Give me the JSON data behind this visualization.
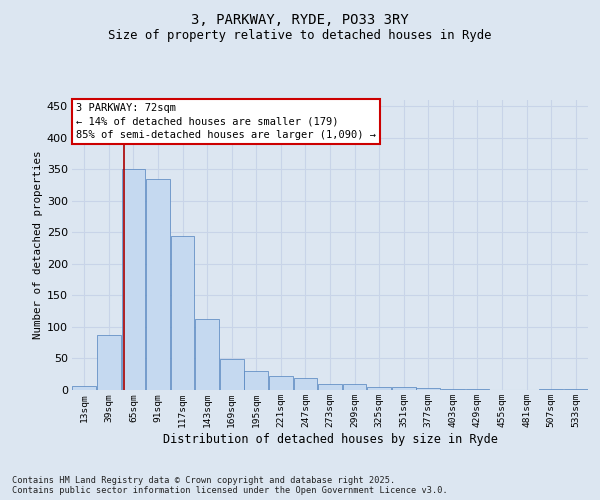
{
  "title1": "3, PARKWAY, RYDE, PO33 3RY",
  "title2": "Size of property relative to detached houses in Ryde",
  "xlabel": "Distribution of detached houses by size in Ryde",
  "ylabel": "Number of detached properties",
  "categories": [
    "13sqm",
    "39sqm",
    "65sqm",
    "91sqm",
    "117sqm",
    "143sqm",
    "169sqm",
    "195sqm",
    "221sqm",
    "247sqm",
    "273sqm",
    "299sqm",
    "325sqm",
    "351sqm",
    "377sqm",
    "403sqm",
    "429sqm",
    "455sqm",
    "481sqm",
    "507sqm",
    "533sqm"
  ],
  "values": [
    6,
    88,
    350,
    335,
    245,
    112,
    49,
    30,
    23,
    19,
    10,
    10,
    5,
    4,
    3,
    2,
    1,
    0,
    0,
    1,
    2
  ],
  "bar_color": "#c5d9f0",
  "bar_edge_color": "#4f81bd",
  "bg_color": "#dce6f1",
  "grid_color": "#c8d4e8",
  "annotation_text": "3 PARKWAY: 72sqm\n← 14% of detached houses are smaller (179)\n85% of semi-detached houses are larger (1,090) →",
  "annotation_box_color": "#ffffff",
  "annotation_box_edge_color": "#cc0000",
  "vline_color": "#aa0000",
  "vline_x": 1.6,
  "ylim_max": 460,
  "yticks": [
    0,
    50,
    100,
    150,
    200,
    250,
    300,
    350,
    400,
    450
  ],
  "footnote": "Contains HM Land Registry data © Crown copyright and database right 2025.\nContains public sector information licensed under the Open Government Licence v3.0."
}
